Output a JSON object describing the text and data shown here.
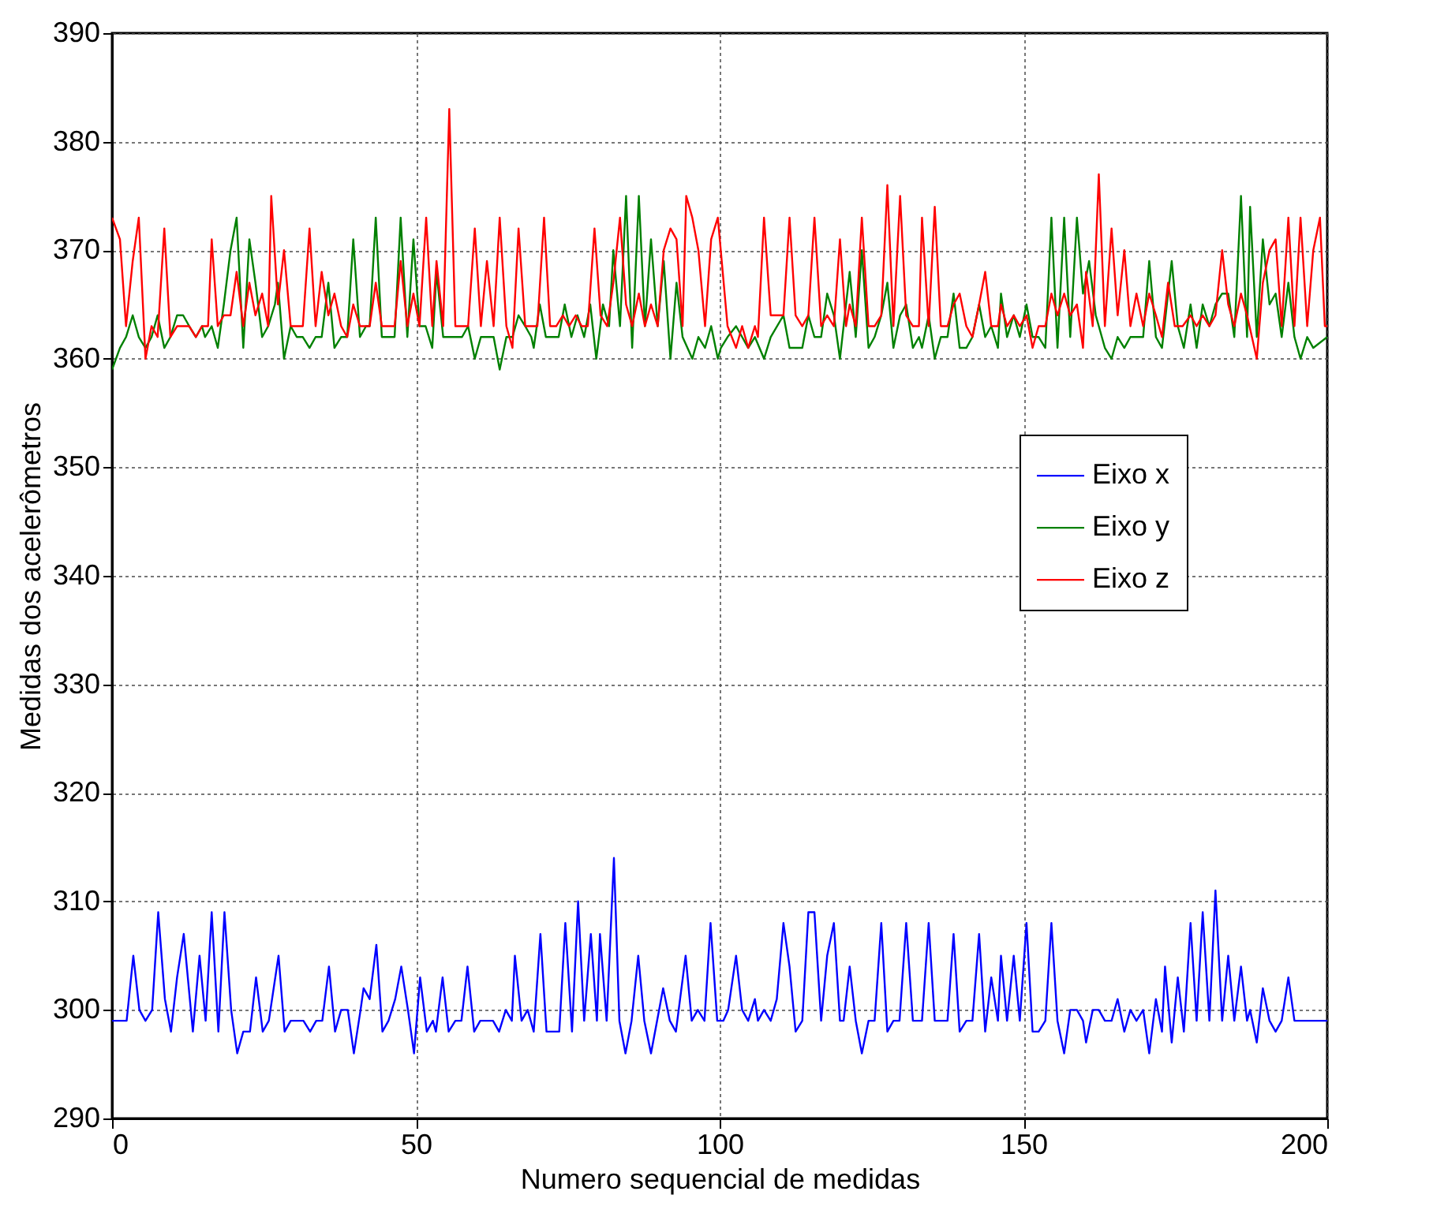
{
  "chart_data": {
    "type": "line",
    "xlabel": "Numero sequencial de medidas",
    "ylabel": "Medidas dos acelerômetros",
    "xlim": [
      0,
      200
    ],
    "ylim": [
      290,
      390
    ],
    "xticks": [
      0,
      50,
      100,
      150,
      200
    ],
    "yticks": [
      290,
      300,
      310,
      320,
      330,
      340,
      350,
      360,
      370,
      380,
      390
    ],
    "grid": true,
    "legend": "right",
    "line_style": "solid",
    "marker": "none",
    "series": [
      {
        "name": "Eixo x",
        "color": "#0000ff",
        "x": [
          0,
          2.4,
          3.5,
          4.5,
          5.5,
          6.6,
          7.6,
          8.7,
          9.7,
          10.7,
          11.8,
          13.3,
          14.4,
          15.4,
          16.4,
          17.5,
          18.5,
          19.6,
          20.6,
          21.6,
          22.7,
          23.7,
          24.8,
          25.8,
          27.4,
          28.4,
          29.4,
          31.5,
          32.6,
          33.6,
          34.6,
          35.7,
          36.7,
          37.7,
          38.8,
          39.8,
          40.9,
          41.4,
          42.4,
          43.5,
          44.5,
          45.5,
          46.6,
          47.6,
          48.7,
          49.7,
          50.7,
          51.8,
          52.8,
          53.3,
          54.4,
          55.4,
          56.5,
          57.5,
          58.5,
          59.6,
          60.6,
          62.7,
          63.7,
          64.8,
          65.8,
          66.3,
          67.4,
          68.4,
          69.4,
          70.5,
          71.5,
          73.6,
          74.6,
          75.7,
          76.7,
          77.7,
          78.8,
          79.8,
          80.3,
          81.4,
          82.6,
          83.5,
          84.5,
          85.5,
          86.6,
          87.6,
          88.7,
          89.7,
          90.7,
          91.8,
          92.8,
          94.4,
          95.4,
          96.4,
          97.5,
          98.5,
          99.6,
          100.6,
          101.4,
          102.7,
          103.7,
          104.7,
          105.8,
          106.3,
          107.3,
          108.4,
          109.4,
          110.5,
          111.5,
          112.5,
          113.6,
          114.6,
          115.6,
          116.7,
          117.7,
          118.8,
          119.8,
          120.4,
          121.4,
          122.4,
          123.4,
          124.5,
          125.5,
          126.6,
          127.6,
          128.6,
          129.6,
          130.7,
          131.8,
          133.3,
          134.4,
          135.4,
          137.5,
          138.5,
          139.5,
          140.6,
          141.6,
          142.7,
          143.7,
          144.7,
          145.8,
          146.3,
          147.3,
          148.4,
          149.4,
          150.5,
          151.5,
          152.5,
          153.6,
          154.6,
          155.6,
          156.7,
          157.7,
          158.8,
          159.8,
          160.3,
          161.4,
          162.4,
          163.4,
          164.5,
          165.5,
          166.6,
          167.6,
          168.6,
          169.7,
          170.7,
          171.8,
          172.8,
          173.3,
          174.4,
          175.4,
          176.4,
          177.5,
          178.5,
          179.5,
          180.6,
          181.6,
          182.7,
          183.7,
          184.7,
          185.8,
          186.8,
          187.3,
          188.4,
          189.4,
          190.5,
          191.5,
          192.5,
          193.6,
          194.6,
          200
        ],
        "values": [
          299,
          299,
          305,
          300,
          299,
          300,
          309,
          301,
          298,
          303,
          307,
          298,
          305,
          299,
          309,
          298,
          309,
          300,
          296,
          298,
          298,
          303,
          298,
          299,
          305,
          298,
          299,
          299,
          298,
          299,
          299,
          304,
          298,
          300,
          300,
          296,
          300,
          302,
          301,
          306,
          298,
          299,
          301,
          304,
          300,
          296,
          303,
          298,
          299,
          298,
          303,
          298,
          299,
          299,
          304,
          298,
          299,
          299,
          298,
          300,
          299,
          305,
          299,
          300,
          298,
          307,
          298,
          298,
          308,
          298,
          310,
          299,
          307,
          299,
          307,
          299,
          314,
          299,
          296,
          299,
          305,
          299,
          296,
          299,
          302,
          299,
          298,
          305,
          299,
          300,
          299,
          308,
          299,
          299,
          300,
          305,
          300,
          299,
          301,
          299,
          300,
          299,
          301,
          308,
          304,
          298,
          299,
          309,
          309,
          299,
          305,
          308,
          299,
          299,
          304,
          299,
          296,
          299,
          299,
          308,
          298,
          299,
          299,
          308,
          299,
          299,
          308,
          299,
          299,
          307,
          298,
          299,
          299,
          307,
          298,
          303,
          299,
          305,
          299,
          305,
          299,
          308,
          298,
          298,
          299,
          308,
          299,
          296,
          300,
          300,
          299,
          297,
          300,
          300,
          299,
          299,
          301,
          298,
          300,
          299,
          300,
          296,
          301,
          298,
          304,
          297,
          303,
          298,
          308,
          299,
          309,
          299,
          311,
          299,
          305,
          299,
          304,
          299,
          300,
          297,
          302,
          299,
          298,
          299,
          303,
          299,
          299
        ]
      },
      {
        "name": "Eixo y",
        "color": "#008000",
        "x": [
          0,
          1.3,
          2.3,
          3.4,
          4.4,
          5.5,
          6.5,
          7.5,
          8.6,
          9.6,
          10.7,
          11.7,
          12.7,
          13.8,
          14.8,
          15.3,
          16.4,
          17.4,
          18.4,
          19.5,
          20.5,
          21.6,
          22.6,
          23.6,
          24.7,
          25.7,
          26.8,
          27.3,
          28.3,
          29.4,
          30.4,
          31.4,
          32.5,
          33.5,
          34.5,
          35.6,
          36.6,
          37.7,
          38.7,
          39.7,
          40.8,
          41.8,
          42.4,
          43.4,
          44.4,
          46.5,
          47.5,
          48.6,
          49.6,
          50.6,
          51.6,
          52.7,
          53.4,
          54.5,
          57.6,
          58.6,
          59.7,
          60.7,
          62.8,
          63.8,
          64.9,
          65.9,
          66.9,
          68,
          69,
          69.4,
          70.4,
          71.4,
          73.5,
          74.5,
          75.6,
          76.6,
          77.7,
          78.7,
          79.7,
          80.8,
          81.8,
          82.5,
          83.6,
          84.6,
          85.6,
          86.7,
          87.7,
          88.7,
          89.8,
          90.8,
          91.9,
          92.9,
          93.9,
          95.5,
          96.5,
          97.6,
          98.6,
          99.7,
          100.2,
          101.3,
          102.7,
          103.7,
          104.7,
          105.8,
          107.3,
          108.4,
          110.5,
          111.5,
          113.6,
          114.6,
          115.6,
          116.7,
          117.7,
          118.8,
          119.8,
          121.4,
          122.4,
          123.4,
          124.5,
          125.5,
          126.6,
          127.6,
          128.6,
          129.7,
          130.7,
          131.8,
          132.8,
          133.3,
          134.4,
          135.4,
          136.4,
          137.5,
          138.5,
          139.5,
          140.6,
          141.6,
          142.7,
          143.7,
          144.7,
          145.8,
          146.3,
          147.3,
          148.4,
          149.4,
          150.5,
          151.5,
          152.5,
          153.6,
          154.6,
          155.6,
          156.7,
          157.7,
          158.8,
          159.8,
          160.8,
          161.9,
          163.4,
          164.5,
          165.5,
          166.6,
          167.6,
          169.7,
          170.7,
          171.8,
          172.8,
          174.4,
          175.4,
          176.4,
          177.5,
          178.5,
          179.5,
          180.6,
          181.6,
          182.7,
          183.7,
          184.7,
          185.8,
          186.8,
          187.3,
          188.4,
          189.4,
          190.5,
          191.5,
          192.5,
          193.6,
          194.6,
          195.6,
          196.7,
          197.7,
          200
        ],
        "values": [
          359,
          361,
          362,
          364,
          362,
          361,
          362,
          364,
          361,
          362,
          364,
          364,
          363,
          362,
          363,
          362,
          363,
          361,
          365,
          370,
          373,
          361,
          371,
          367,
          362,
          363,
          365,
          367,
          360,
          363,
          362,
          362,
          361,
          362,
          362,
          367,
          361,
          362,
          362,
          371,
          362,
          363,
          363,
          373,
          362,
          362,
          373,
          362,
          371,
          363,
          363,
          361,
          368,
          362,
          362,
          363,
          360,
          362,
          362,
          359,
          362,
          362,
          364,
          363,
          362,
          361,
          365,
          362,
          362,
          365,
          362,
          364,
          362,
          365,
          360,
          365,
          363,
          370,
          363,
          375,
          361,
          375,
          363,
          371,
          363,
          369,
          360,
          367,
          362,
          360,
          362,
          361,
          363,
          360,
          361,
          362,
          363,
          362,
          361,
          362,
          360,
          362,
          364,
          361,
          361,
          364,
          362,
          362,
          366,
          364,
          360,
          368,
          362,
          370,
          361,
          362,
          364,
          367,
          361,
          364,
          365,
          361,
          362,
          361,
          364,
          360,
          362,
          362,
          366,
          361,
          361,
          362,
          365,
          362,
          363,
          361,
          366,
          362,
          364,
          362,
          365,
          362,
          362,
          361,
          373,
          361,
          373,
          362,
          373,
          366,
          369,
          364,
          361,
          360,
          362,
          361,
          362,
          362,
          369,
          362,
          361,
          369,
          363,
          361,
          365,
          361,
          365,
          363,
          365,
          366,
          366,
          362,
          375,
          362,
          374,
          362,
          371,
          365,
          366,
          362,
          367,
          362,
          360,
          362,
          361,
          362
        ]
      },
      {
        "name": "Eixo z",
        "color": "#ff0000",
        "x": [
          0,
          1.3,
          2.3,
          3.4,
          4.4,
          5.5,
          6.5,
          7.5,
          8.6,
          9.6,
          10.7,
          12.7,
          13.8,
          14.8,
          15.8,
          16.4,
          17.4,
          18.4,
          19.5,
          20.5,
          21.6,
          22.6,
          23.6,
          24.7,
          25.7,
          26.2,
          27.3,
          28.3,
          29.4,
          31.4,
          32.5,
          33.5,
          34.5,
          35.6,
          36.6,
          37.7,
          38.7,
          39.7,
          40.8,
          42.4,
          43.4,
          44.4,
          46.5,
          47.5,
          48.6,
          49.6,
          50.6,
          51.7,
          52.7,
          53.4,
          54.5,
          55.5,
          56.5,
          58.6,
          59.7,
          60.7,
          61.7,
          62.8,
          63.8,
          64.9,
          65.9,
          66.9,
          68,
          70,
          71.1,
          72.1,
          73.1,
          74.2,
          75.2,
          76.3,
          77.3,
          78.3,
          79.4,
          80.4,
          81.5,
          82.5,
          83.6,
          84.6,
          85.6,
          86.7,
          87.7,
          88.7,
          89.8,
          90.8,
          91.9,
          92.9,
          93.9,
          94.5,
          95.5,
          96.5,
          97.6,
          98.6,
          99.7,
          100.5,
          101.3,
          102.7,
          103.7,
          104.7,
          105.8,
          106.3,
          107.3,
          108.4,
          110.5,
          111.5,
          112.5,
          113.6,
          114.6,
          115.6,
          116.7,
          117.7,
          118.8,
          119.8,
          120.8,
          121.4,
          122.4,
          123.4,
          124.5,
          125.5,
          126.6,
          127.6,
          128.6,
          129.7,
          130.7,
          131.8,
          132.8,
          133.3,
          134.4,
          135.4,
          136.4,
          137.5,
          138.5,
          139.5,
          140.6,
          141.6,
          142.7,
          143.7,
          144.7,
          145.8,
          146.3,
          147.3,
          148.4,
          149.4,
          150.5,
          151.5,
          152.5,
          153.6,
          154.6,
          155.6,
          156.7,
          157.7,
          158.8,
          159.8,
          160.3,
          161.4,
          162.4,
          163.4,
          164.5,
          165.5,
          166.6,
          167.6,
          168.6,
          169.7,
          170.7,
          171.8,
          172.8,
          173.8,
          174.9,
          176.2,
          177.5,
          178.5,
          179.5,
          180.6,
          181.6,
          182.7,
          183.7,
          184.7,
          185.8,
          186.8,
          188.4,
          189.4,
          190.5,
          191.5,
          192.5,
          193.6,
          194.6,
          195.6,
          196.7,
          197.7,
          198.8,
          199.6,
          200
        ],
        "values": [
          373,
          371,
          363,
          369,
          373,
          360,
          363,
          362,
          372,
          362,
          363,
          363,
          362,
          363,
          363,
          371,
          363,
          364,
          364,
          368,
          363,
          367,
          364,
          366,
          363,
          375,
          365,
          370,
          363,
          363,
          372,
          363,
          368,
          364,
          366,
          363,
          362,
          365,
          363,
          363,
          367,
          363,
          363,
          369,
          363,
          366,
          363,
          373,
          363,
          369,
          363,
          383,
          363,
          363,
          372,
          363,
          369,
          363,
          373,
          363,
          361,
          372,
          363,
          363,
          373,
          363,
          363,
          364,
          363,
          364,
          363,
          363,
          372,
          364,
          363,
          367,
          373,
          365,
          363,
          366,
          363,
          365,
          363,
          370,
          372,
          371,
          363,
          375,
          373,
          370,
          363,
          371,
          373,
          368,
          363,
          361,
          363,
          361,
          363,
          362,
          373,
          364,
          364,
          373,
          364,
          363,
          364,
          373,
          363,
          364,
          363,
          371,
          363,
          365,
          363,
          373,
          363,
          363,
          364,
          376,
          363,
          375,
          364,
          363,
          363,
          373,
          363,
          374,
          363,
          363,
          365,
          366,
          363,
          362,
          365,
          368,
          363,
          363,
          365,
          363,
          364,
          363,
          364,
          361,
          363,
          363,
          366,
          364,
          366,
          364,
          365,
          361,
          368,
          363,
          377,
          363,
          372,
          364,
          370,
          363,
          366,
          363,
          366,
          364,
          362,
          367,
          363,
          363,
          364,
          363,
          364,
          363,
          364,
          370,
          365,
          363,
          366,
          364,
          360,
          367,
          370,
          371,
          363,
          373,
          363,
          373,
          363,
          370,
          373,
          363,
          363
        ]
      }
    ]
  }
}
